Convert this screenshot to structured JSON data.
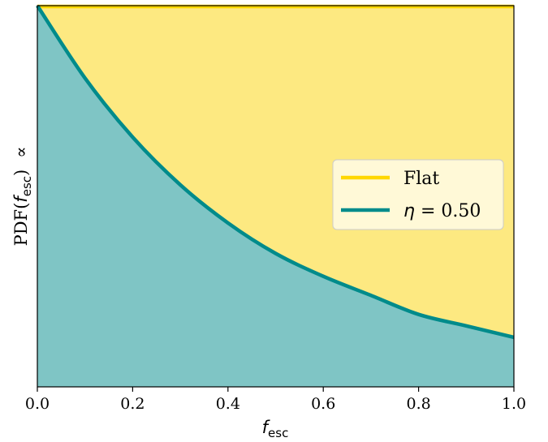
{
  "chart_data": {
    "type": "area",
    "x": [
      0.0,
      0.1,
      0.2,
      0.3,
      0.4,
      0.5,
      0.6,
      0.7,
      0.8,
      0.9,
      1.0
    ],
    "series": [
      {
        "name": "Flat",
        "values": [
          1,
          1,
          1,
          1,
          1,
          1,
          1,
          1,
          1,
          1,
          1
        ],
        "color": "#ffd700"
      },
      {
        "name": "η = 0.50",
        "values": [
          1.0,
          0.81,
          0.655,
          0.53,
          0.43,
          0.35,
          0.29,
          0.24,
          0.19,
          0.16,
          0.13
        ],
        "color": "#008b8b"
      }
    ],
    "fill_colors": {
      "flat": "#fde981",
      "eta": "#7fc5c5"
    },
    "xlim": [
      0.0,
      1.0
    ],
    "ylim": [
      0.0,
      1.0
    ],
    "x_ticks": [
      "0.0",
      "0.2",
      "0.4",
      "0.6",
      "0.8",
      "1.0"
    ],
    "xlabel": {
      "base": "f",
      "sub": "esc"
    },
    "ylabel": {
      "prefix": "PDF(",
      "var": "f",
      "sub": "esc",
      "suffix": ")",
      "symbol": "∝"
    },
    "legend": {
      "position": "center-right",
      "items": [
        {
          "label": "Flat"
        },
        {
          "label_var": "η",
          "label_rest": " = 0.50"
        }
      ]
    },
    "grid": false
  }
}
